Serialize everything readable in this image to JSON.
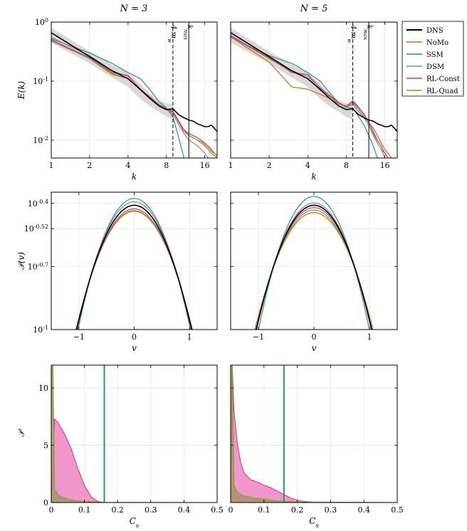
{
  "colors": {
    "DNS": "#000000",
    "NoMo": "#d96a14",
    "SSM": "#1b9e77",
    "DSM": "#8e7cc3",
    "RL-Const": "#e7298a",
    "RL-Quad": "#66b01e",
    "band": "#d4d4d4",
    "grid": "#e6e6e6",
    "hist_pink": "#f08cc6",
    "hist_olive": "#a8936a"
  },
  "column_titles": [
    "N = 3",
    "N = 5"
  ],
  "legend": [
    "DNS",
    "NoMo",
    "SSM",
    "DSM",
    "RL-Const",
    "RL-Quad"
  ],
  "chart_data": [
    {
      "id": "spectrum_n3",
      "type": "line",
      "title": "N = 3",
      "xlabel": "k",
      "ylabel": "E(k)",
      "xscale": "log2",
      "yscale": "log",
      "xlim": [
        1,
        20
      ],
      "ylim": [
        0.005,
        1
      ],
      "xticks": [
        1,
        2,
        4,
        8,
        16
      ],
      "xtick_labels": [
        "1",
        "2",
        "4",
        "8",
        "16"
      ],
      "yticks": [
        0.01,
        0.1,
        1
      ],
      "ytick_labels": [
        "10^-2",
        "10^-1",
        "10^0"
      ],
      "vlines": [
        {
          "x": 9,
          "label": "4 m_w",
          "style": "dashed"
        },
        {
          "x": 12,
          "label": "k_max",
          "style": "solid"
        }
      ],
      "band": {
        "x": [
          1,
          2,
          3,
          4,
          5,
          6,
          7,
          8,
          9
        ],
        "lo": [
          0.45,
          0.2,
          0.115,
          0.08,
          0.05,
          0.037,
          0.03,
          0.025,
          0.022
        ],
        "hi": [
          0.8,
          0.32,
          0.19,
          0.14,
          0.09,
          0.06,
          0.047,
          0.042,
          0.04
        ]
      },
      "series": [
        {
          "name": "DNS",
          "x": [
            1,
            2,
            3,
            4,
            5,
            6,
            7,
            8,
            9,
            10,
            11,
            12,
            13,
            14,
            15,
            16,
            17,
            18,
            19,
            20
          ],
          "y": [
            0.66,
            0.26,
            0.15,
            0.11,
            0.072,
            0.05,
            0.038,
            0.033,
            0.034,
            0.027,
            0.024,
            0.022,
            0.021,
            0.019,
            0.018,
            0.017,
            0.017,
            0.018,
            0.016,
            0.014
          ]
        },
        {
          "name": "NoMo",
          "x": [
            1,
            2,
            3,
            4,
            5,
            6,
            7,
            8,
            9,
            10,
            11,
            12,
            13,
            14,
            15,
            16,
            17,
            18,
            19,
            20
          ],
          "y": [
            0.5,
            0.24,
            0.13,
            0.11,
            0.073,
            0.053,
            0.04,
            0.034,
            0.03,
            0.02,
            0.014,
            0.012,
            0.011,
            0.01,
            0.009,
            0.008,
            0.007,
            0.006,
            0.0055,
            0.005
          ]
        },
        {
          "name": "SSM",
          "x": [
            1,
            2,
            3,
            4,
            5,
            6,
            7,
            8,
            9,
            10,
            11
          ],
          "y": [
            0.52,
            0.3,
            0.2,
            0.14,
            0.11,
            0.07,
            0.045,
            0.035,
            0.025,
            0.011,
            0.005
          ]
        },
        {
          "name": "DSM",
          "x": [
            1,
            2,
            3,
            4,
            5,
            6,
            7,
            8,
            9,
            10,
            11,
            12,
            13,
            14,
            15,
            16,
            17
          ],
          "y": [
            0.55,
            0.27,
            0.15,
            0.12,
            0.074,
            0.053,
            0.04,
            0.034,
            0.028,
            0.018,
            0.013,
            0.01,
            0.009,
            0.008,
            0.007,
            0.006,
            0.005
          ]
        },
        {
          "name": "RL-Const",
          "x": [
            1,
            2,
            3,
            4,
            5,
            6,
            7,
            8,
            9,
            10,
            11,
            12,
            13,
            14,
            15,
            16,
            17,
            18,
            19,
            20
          ],
          "y": [
            0.5,
            0.25,
            0.14,
            0.125,
            0.073,
            0.053,
            0.04,
            0.034,
            0.031,
            0.021,
            0.015,
            0.013,
            0.012,
            0.011,
            0.01,
            0.009,
            0.008,
            0.007,
            0.006,
            0.0055
          ]
        },
        {
          "name": "RL-Quad",
          "x": [
            1,
            2,
            3,
            4,
            5,
            6,
            7,
            8,
            9,
            10,
            11,
            12,
            13,
            14,
            15,
            16,
            17,
            18,
            19,
            20
          ],
          "y": [
            0.48,
            0.24,
            0.135,
            0.11,
            0.072,
            0.052,
            0.04,
            0.034,
            0.031,
            0.021,
            0.015,
            0.012,
            0.011,
            0.01,
            0.0095,
            0.0085,
            0.0075,
            0.0065,
            0.006,
            0.0055
          ]
        }
      ]
    },
    {
      "id": "spectrum_n5",
      "type": "line",
      "title": "N = 5",
      "xlabel": "k",
      "ylabel": "",
      "xscale": "log2",
      "yscale": "log",
      "xlim": [
        1,
        20
      ],
      "ylim": [
        0.005,
        1
      ],
      "xticks": [
        1,
        2,
        4,
        8,
        16
      ],
      "xtick_labels": [
        "1",
        "2",
        "4",
        "8",
        "16"
      ],
      "yticks": [
        0.01,
        0.1,
        1
      ],
      "ytick_labels": [
        "",
        "",
        ""
      ],
      "vlines": [
        {
          "x": 9,
          "label": "4 m_w",
          "style": "dashed"
        },
        {
          "x": 12,
          "label": "k_max",
          "style": "solid"
        }
      ],
      "band": {
        "x": [
          1,
          2,
          3,
          4,
          5,
          6,
          7,
          8,
          9
        ],
        "lo": [
          0.45,
          0.2,
          0.115,
          0.08,
          0.05,
          0.037,
          0.03,
          0.025,
          0.022
        ],
        "hi": [
          0.8,
          0.32,
          0.19,
          0.14,
          0.09,
          0.06,
          0.047,
          0.042,
          0.04
        ]
      },
      "series": [
        {
          "name": "DNS",
          "x": [
            1,
            2,
            3,
            4,
            5,
            6,
            7,
            8,
            9,
            10,
            11,
            12,
            13,
            14,
            15,
            16,
            17,
            18,
            19,
            20
          ],
          "y": [
            0.66,
            0.26,
            0.15,
            0.11,
            0.072,
            0.05,
            0.038,
            0.033,
            0.034,
            0.027,
            0.024,
            0.022,
            0.021,
            0.019,
            0.018,
            0.017,
            0.017,
            0.018,
            0.016,
            0.014
          ]
        },
        {
          "name": "NoMo",
          "x": [
            1,
            2,
            3,
            4,
            5,
            6,
            7,
            8,
            9,
            10,
            11,
            12,
            13,
            14,
            15,
            16,
            17,
            18
          ],
          "y": [
            0.56,
            0.21,
            0.08,
            0.073,
            0.06,
            0.05,
            0.041,
            0.038,
            0.045,
            0.035,
            0.028,
            0.02,
            0.016,
            0.012,
            0.009,
            0.007,
            0.006,
            0.005
          ]
        },
        {
          "name": "SSM",
          "x": [
            1,
            2,
            3,
            4,
            5,
            6,
            7,
            8,
            9,
            10,
            11,
            12,
            13,
            14
          ],
          "y": [
            0.55,
            0.27,
            0.2,
            0.14,
            0.1,
            0.062,
            0.042,
            0.036,
            0.035,
            0.025,
            0.018,
            0.012,
            0.008,
            0.005
          ]
        },
        {
          "name": "DSM",
          "x": [
            1,
            2,
            3,
            4,
            5,
            6,
            7,
            8,
            9,
            10,
            11,
            12,
            13,
            14,
            15,
            16
          ],
          "y": [
            0.6,
            0.24,
            0.15,
            0.12,
            0.078,
            0.055,
            0.042,
            0.037,
            0.04,
            0.03,
            0.024,
            0.018,
            0.012,
            0.009,
            0.007,
            0.005
          ]
        },
        {
          "name": "RL-Const",
          "x": [
            1,
            2,
            3,
            4,
            5,
            6,
            7,
            8,
            9,
            10,
            11,
            12,
            13,
            14,
            15,
            16,
            17
          ],
          "y": [
            0.58,
            0.25,
            0.14,
            0.13,
            0.076,
            0.056,
            0.043,
            0.037,
            0.047,
            0.036,
            0.027,
            0.02,
            0.014,
            0.01,
            0.008,
            0.006,
            0.005
          ]
        },
        {
          "name": "RL-Quad",
          "x": [
            1,
            2,
            3,
            4,
            5,
            6,
            7,
            8,
            9,
            10,
            11,
            12,
            13,
            14,
            15,
            16,
            17
          ],
          "y": [
            0.57,
            0.24,
            0.145,
            0.11,
            0.074,
            0.054,
            0.042,
            0.036,
            0.043,
            0.033,
            0.025,
            0.018,
            0.013,
            0.009,
            0.007,
            0.006,
            0.005
          ]
        }
      ]
    },
    {
      "id": "pdf_n3",
      "type": "line",
      "xlabel": "v",
      "ylabel": "𝒫(v)",
      "yscale": "log",
      "xlim": [
        -1.5,
        1.5
      ],
      "ylim": [
        0.1,
        0.45
      ],
      "xticks": [
        -1,
        0,
        1
      ],
      "xtick_labels": [
        "−1",
        "0",
        "1"
      ],
      "yticks": [
        0.1,
        0.1995,
        0.302,
        0.398
      ],
      "ytick_labels": [
        "10^-1",
        "10^-0.7",
        "10^-0.52",
        "10^-0.4"
      ],
      "series": [
        {
          "name": "DNS",
          "peak": 0.39,
          "sigma": 0.63
        },
        {
          "name": "NoMo",
          "peak": 0.365,
          "sigma": 0.655
        },
        {
          "name": "SSM",
          "peak": 0.42,
          "sigma": 0.6
        },
        {
          "name": "DSM",
          "peak": 0.405,
          "sigma": 0.62
        },
        {
          "name": "RL-Const",
          "peak": 0.375,
          "sigma": 0.645
        },
        {
          "name": "RL-Quad",
          "peak": 0.368,
          "sigma": 0.65
        }
      ]
    },
    {
      "id": "pdf_n5",
      "type": "line",
      "xlabel": "v",
      "ylabel": "",
      "yscale": "log",
      "xlim": [
        -1.5,
        1.5
      ],
      "ylim": [
        0.1,
        0.45
      ],
      "xticks": [
        -1,
        0,
        1
      ],
      "xtick_labels": [
        "−1",
        "0",
        "1"
      ],
      "yticks": [
        0.1,
        0.1995,
        0.302,
        0.398
      ],
      "ytick_labels": [
        "",
        "",
        "",
        ""
      ],
      "series": [
        {
          "name": "DNS",
          "peak": 0.39,
          "sigma": 0.63
        },
        {
          "name": "NoMo",
          "peak": 0.36,
          "sigma": 0.665
        },
        {
          "name": "SSM",
          "peak": 0.43,
          "sigma": 0.585
        },
        {
          "name": "DSM",
          "peak": 0.4,
          "sigma": 0.62
        },
        {
          "name": "RL-Const",
          "peak": 0.38,
          "sigma": 0.64
        },
        {
          "name": "RL-Quad",
          "peak": 0.37,
          "sigma": 0.648
        }
      ]
    },
    {
      "id": "hist_n3",
      "type": "area",
      "xlabel": "C_s",
      "ylabel": "𝒫",
      "xlim": [
        0,
        0.5
      ],
      "ylim": [
        0,
        12
      ],
      "xticks": [
        0,
        0.1,
        0.2,
        0.3,
        0.4,
        0.5
      ],
      "xtick_labels": [
        "0",
        "0.1",
        "0.2",
        "0.3",
        "0.4",
        "0.5"
      ],
      "yticks": [
        0,
        5,
        10
      ],
      "ytick_labels": [
        "0",
        "5",
        "10"
      ],
      "vlines": [
        {
          "x": 0.16,
          "series": "SSM"
        }
      ],
      "series": [
        {
          "name": "RL-Const",
          "x": [
            0,
            0.01,
            0.02,
            0.04,
            0.06,
            0.08,
            0.1,
            0.12,
            0.14,
            0.16,
            0.5
          ],
          "y": [
            0,
            7.3,
            7.0,
            6.0,
            4.7,
            3.0,
            1.5,
            0.5,
            0.1,
            0.0,
            0.0
          ]
        },
        {
          "name": "RL-Quad",
          "x": [
            0,
            0.005,
            0.01,
            0.02,
            0.03,
            0.05,
            0.08,
            0.12,
            0.16,
            0.5
          ],
          "y": [
            12,
            12,
            1.2,
            0.7,
            0.5,
            0.3,
            0.15,
            0.07,
            0.02,
            0.0
          ]
        }
      ]
    },
    {
      "id": "hist_n5",
      "type": "area",
      "xlabel": "C_s",
      "ylabel": "",
      "xlim": [
        0,
        0.5
      ],
      "ylim": [
        0,
        12
      ],
      "xticks": [
        0,
        0.1,
        0.2,
        0.3,
        0.4,
        0.5
      ],
      "xtick_labels": [
        "0",
        "0.1",
        "0.2",
        "0.3",
        "0.4",
        "0.5"
      ],
      "yticks": [
        0,
        5,
        10
      ],
      "ytick_labels": [
        "",
        "",
        ""
      ],
      "vlines": [
        {
          "x": 0.16,
          "series": "SSM"
        }
      ],
      "series": [
        {
          "name": "RL-Const",
          "x": [
            0,
            0.005,
            0.01,
            0.02,
            0.03,
            0.04,
            0.06,
            0.08,
            0.1,
            0.12,
            0.14,
            0.16,
            0.18,
            0.2,
            0.22,
            0.25,
            0.5
          ],
          "y": [
            0,
            12,
            8.0,
            5.2,
            3.5,
            2.6,
            2.0,
            1.8,
            1.5,
            1.3,
            1.0,
            0.7,
            0.4,
            0.2,
            0.1,
            0.03,
            0.0
          ]
        },
        {
          "name": "RL-Quad",
          "x": [
            0,
            0.005,
            0.01,
            0.02,
            0.04,
            0.06,
            0.08,
            0.1,
            0.14,
            0.2,
            0.5
          ],
          "y": [
            12,
            12,
            1.5,
            0.9,
            0.6,
            0.45,
            0.35,
            0.3,
            0.15,
            0.05,
            0.0
          ]
        }
      ]
    }
  ]
}
